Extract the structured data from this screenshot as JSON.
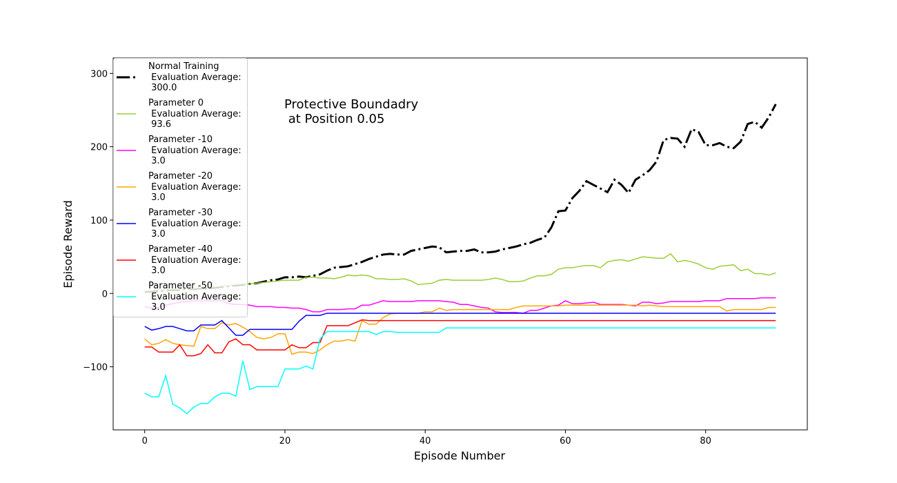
{
  "chart_data": {
    "type": "line",
    "annotation": "Protective Boundadry\n at Position 0.05",
    "xlabel": "Episode Number",
    "ylabel": "Episode Reward",
    "x": [
      0,
      1,
      2,
      3,
      4,
      5,
      6,
      7,
      8,
      9,
      10,
      11,
      12,
      13,
      14,
      15,
      16,
      17,
      18,
      19,
      20,
      21,
      22,
      23,
      24,
      25,
      26,
      27,
      28,
      29,
      30,
      31,
      32,
      33,
      34,
      35,
      36,
      37,
      38,
      39,
      40,
      41,
      42,
      43,
      44,
      45,
      46,
      47,
      48,
      49,
      50,
      51,
      52,
      53,
      54,
      55,
      56,
      57,
      58,
      59,
      60,
      61,
      62,
      63,
      64,
      65,
      66,
      67,
      68,
      69,
      70,
      71,
      72,
      73,
      74,
      75,
      76,
      77,
      78,
      79,
      80,
      81,
      82,
      83,
      84,
      85,
      86,
      87,
      88,
      89,
      90
    ],
    "xlim": [
      -4.5,
      94.5
    ],
    "xticks": [
      0,
      20,
      40,
      60,
      80
    ],
    "ylim": [
      -186,
      321
    ],
    "yticks": [
      {
        "value": -100,
        "label": "−100"
      },
      0,
      100,
      200,
      300
    ],
    "legend": "upper left",
    "series": [
      {
        "name": "Normal Training\n Evaluation Average:\n 300.0",
        "color": "#000000",
        "linestyle": "dashdot",
        "linewidth": 3,
        "values": [
          2,
          3,
          3,
          4,
          5,
          5,
          6,
          6,
          7,
          7,
          8,
          9,
          10,
          11,
          12,
          13,
          14,
          16,
          18,
          19,
          22,
          22,
          23,
          22,
          24,
          26,
          31,
          35,
          36,
          37,
          40,
          43,
          47,
          50,
          53,
          54,
          53,
          53,
          58,
          60,
          62,
          64,
          63,
          56,
          57,
          58,
          58,
          60,
          56,
          56,
          57,
          60,
          62,
          64,
          67,
          69,
          73,
          76,
          90,
          112,
          113,
          130,
          140,
          153,
          148,
          143,
          138,
          155,
          148,
          137,
          155,
          161,
          168,
          180,
          209,
          212,
          211,
          200,
          224,
          220,
          202,
          202,
          205,
          200,
          198,
          207,
          231,
          234,
          226,
          240,
          258
        ]
      },
      {
        "name": "Parameter 0\n Evaluation Average:\n 93.6",
        "color": "#9acd32",
        "linestyle": "solid",
        "linewidth": 1.5,
        "values": [
          3,
          4,
          5,
          5,
          6,
          6,
          7,
          7,
          8,
          8,
          9,
          10,
          11,
          12,
          13,
          13,
          14,
          15,
          16,
          17,
          18,
          18,
          18,
          22,
          22,
          21,
          21,
          20,
          22,
          25,
          24,
          25,
          24,
          20,
          20,
          19,
          19,
          20,
          17,
          12,
          13,
          14,
          18,
          19,
          18,
          18,
          18,
          18,
          18,
          19,
          21,
          19,
          16,
          16,
          17,
          21,
          24,
          24,
          26,
          33,
          35,
          35,
          37,
          38,
          38,
          35,
          43,
          45,
          46,
          44,
          47,
          50,
          49,
          48,
          48,
          54,
          43,
          45,
          43,
          40,
          35,
          33,
          37,
          38,
          39,
          31,
          33,
          27,
          27,
          25,
          28
        ]
      },
      {
        "name": "Parameter -10\n Evaluation Average:\n 3.0",
        "color": "#ff00ff",
        "linestyle": "solid",
        "linewidth": 1.5,
        "values": [
          -18,
          -20,
          -19,
          -16,
          -14,
          -12,
          -11,
          -10,
          -10,
          -10,
          -10,
          -10,
          -14,
          -15,
          -15,
          -16,
          -18,
          -18,
          -18,
          -19,
          -19,
          -20,
          -20,
          -22,
          -25,
          -25,
          -22,
          -22,
          -22,
          -21,
          -21,
          -16,
          -16,
          -13,
          -10,
          -11,
          -11,
          -11,
          -11,
          -10,
          -10,
          -10,
          -10,
          -11,
          -12,
          -15,
          -15,
          -17,
          -19,
          -20,
          -25,
          -26,
          -26,
          -26,
          -27,
          -23,
          -23,
          -20,
          -17,
          -16,
          -10,
          -14,
          -14,
          -13,
          -12,
          -15,
          -15,
          -15,
          -15,
          -16,
          -17,
          -12,
          -12,
          -14,
          -13,
          -11,
          -11,
          -11,
          -11,
          -11,
          -10,
          -10,
          -10,
          -7,
          -7,
          -7,
          -7,
          -7,
          -6,
          -6,
          -6
        ]
      },
      {
        "name": "Parameter -20\n Evaluation Average:\n 3.0",
        "color": "#ffa500",
        "linestyle": "solid",
        "linewidth": 1.5,
        "values": [
          -62,
          -70,
          -68,
          -63,
          -68,
          -70,
          -71,
          -72,
          -45,
          -48,
          -48,
          -40,
          -43,
          -41,
          -46,
          -52,
          -60,
          -62,
          -60,
          -55,
          -55,
          -83,
          -80,
          -80,
          -82,
          -77,
          -70,
          -65,
          -65,
          -63,
          -65,
          -37,
          -42,
          -42,
          -33,
          -28,
          -27,
          -27,
          -27,
          -27,
          -25,
          -25,
          -20,
          -23,
          -22,
          -22,
          -22,
          -22,
          -22,
          -22,
          -22,
          -22,
          -22,
          -19,
          -17,
          -17,
          -17,
          -17,
          -17,
          -17,
          -16,
          -16,
          -16,
          -16,
          -16,
          -16,
          -16,
          -16,
          -16,
          -16,
          -16,
          -17,
          -16,
          -17,
          -18,
          -18,
          -18,
          -18,
          -18,
          -18,
          -18,
          -18,
          -18,
          -24,
          -22,
          -22,
          -22,
          -22,
          -22,
          -19,
          -19
        ]
      },
      {
        "name": "Parameter -30\n Evaluation Average:\n 3.0",
        "color": "#0000ff",
        "linestyle": "solid",
        "linewidth": 1.5,
        "values": [
          -45,
          -50,
          -48,
          -45,
          -45,
          -48,
          -51,
          -51,
          -43,
          -43,
          -43,
          -37,
          -47,
          -57,
          -57,
          -49,
          -49,
          -49,
          -49,
          -49,
          -49,
          -49,
          -38,
          -30,
          -30,
          -30,
          -27,
          -27,
          -27,
          -27,
          -27,
          -27,
          -27,
          -27,
          -27,
          -27,
          -27,
          -27,
          -27,
          -27,
          -27,
          -27,
          -27,
          -27,
          -27,
          -27,
          -27,
          -27,
          -27,
          -27,
          -27,
          -27,
          -27,
          -27,
          -27,
          -27,
          -27,
          -27,
          -27,
          -27,
          -27,
          -27,
          -27,
          -27,
          -27,
          -27,
          -27,
          -27,
          -27,
          -27,
          -27,
          -27,
          -27,
          -27,
          -27,
          -27,
          -27,
          -27,
          -27,
          -27,
          -27,
          -27,
          -27,
          -27,
          -27,
          -27,
          -27,
          -27,
          -27,
          -27,
          -27
        ]
      },
      {
        "name": "Parameter -40\n Evaluation Average:\n 3.0",
        "color": "#ff0000",
        "linestyle": "solid",
        "linewidth": 1.5,
        "values": [
          -73,
          -73,
          -80,
          -80,
          -80,
          -70,
          -85,
          -85,
          -82,
          -70,
          -81,
          -81,
          -66,
          -62,
          -70,
          -70,
          -77,
          -77,
          -77,
          -77,
          -77,
          -70,
          -74,
          -74,
          -67,
          -67,
          -44,
          -44,
          -44,
          -44,
          -40,
          -36,
          -37,
          -37,
          -37,
          -37,
          -37,
          -37,
          -37,
          -37,
          -37,
          -37,
          -37,
          -37,
          -37,
          -37,
          -37,
          -37,
          -37,
          -37,
          -37,
          -37,
          -37,
          -37,
          -37,
          -37,
          -37,
          -37,
          -37,
          -37,
          -37,
          -37,
          -37,
          -37,
          -37,
          -37,
          -37,
          -37,
          -37,
          -37,
          -37,
          -37,
          -37,
          -37,
          -37,
          -37,
          -37,
          -37,
          -37,
          -37,
          -37,
          -37,
          -37,
          -37,
          -37,
          -37,
          -37,
          -37,
          -37,
          -37,
          -37
        ]
      },
      {
        "name": "Parameter -50\n Evaluation Average:\n 3.0",
        "color": "#00ffff",
        "linestyle": "solid",
        "linewidth": 1.5,
        "values": [
          -136,
          -141,
          -141,
          -112,
          -151,
          -156,
          -164,
          -155,
          -150,
          -150,
          -141,
          -136,
          -136,
          -140,
          -92,
          -131,
          -127,
          -127,
          -127,
          -127,
          -103,
          -103,
          -103,
          -99,
          -103,
          -62,
          -52,
          -52,
          -52,
          -52,
          -52,
          -52,
          -52,
          -56,
          -52,
          -52,
          -53,
          -53,
          -53,
          -53,
          -53,
          -53,
          -53,
          -47,
          -47,
          -47,
          -47,
          -47,
          -47,
          -47,
          -47,
          -47,
          -47,
          -47,
          -47,
          -47,
          -47,
          -47,
          -47,
          -47,
          -47,
          -47,
          -47,
          -47,
          -47,
          -47,
          -47,
          -47,
          -47,
          -47,
          -47,
          -47,
          -47,
          -47,
          -47,
          -47,
          -47,
          -47,
          -47,
          -47,
          -47,
          -47,
          -47,
          -47,
          -47,
          -47,
          -47,
          -47,
          -47,
          -47,
          -47
        ]
      }
    ]
  }
}
